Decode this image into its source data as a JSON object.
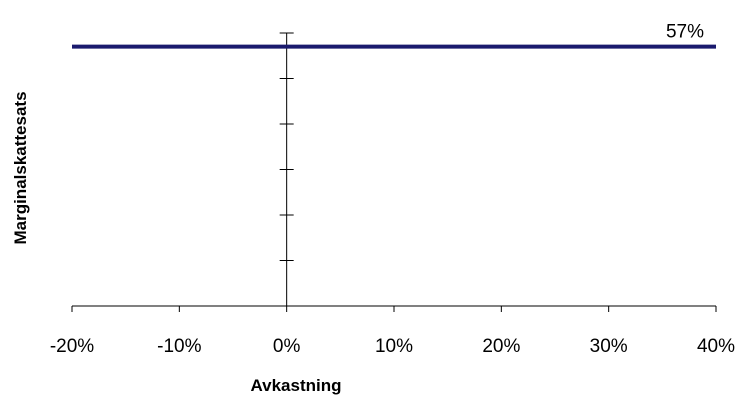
{
  "chart_data": {
    "type": "line",
    "title": "",
    "xlabel": "Avkastning",
    "ylabel": "Marginalskattesats",
    "x_ticks": [
      "-20%",
      "-10%",
      "0%",
      "10%",
      "20%",
      "30%",
      "40%"
    ],
    "x_tick_values": [
      -20,
      -10,
      0,
      10,
      20,
      30,
      40
    ],
    "xlim": [
      -20,
      40
    ],
    "ylim": [
      0,
      60
    ],
    "y_tick_values": [
      0,
      10,
      20,
      30,
      40,
      50,
      60
    ],
    "y_tick_labels_shown": false,
    "grid": false,
    "legend": "none",
    "series": [
      {
        "x": [
          -20,
          40
        ],
        "y": [
          57,
          57
        ],
        "color": "#1a1a6e"
      }
    ],
    "annotations": [
      {
        "text": "57%",
        "x": 40,
        "y": 57
      }
    ]
  }
}
